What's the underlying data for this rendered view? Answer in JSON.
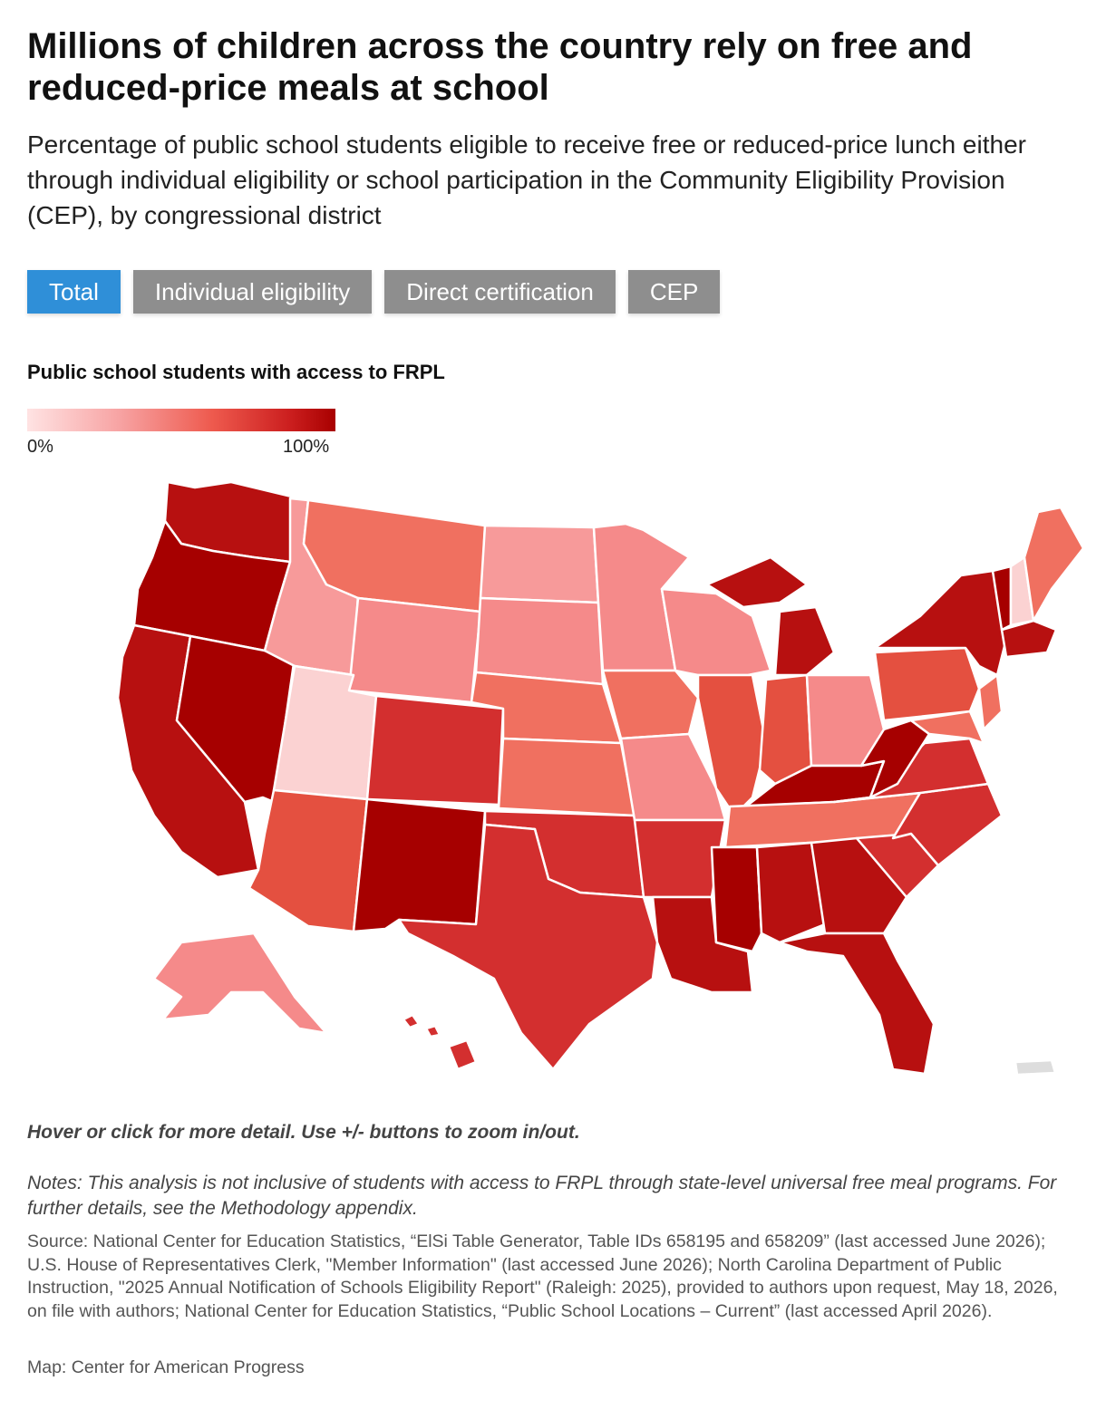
{
  "header": {
    "title": "Millions of children across the country rely on free and reduced-price meals at school",
    "subtitle": "Percentage of public school students eligible to receive free or reduced-price lunch either through individual eligibility or school participation in the Community Eligibility Provision (CEP), by congressional district"
  },
  "tabs": [
    {
      "label": "Total",
      "active": true
    },
    {
      "label": "Individual eligibility",
      "active": false
    },
    {
      "label": "Direct certification",
      "active": false
    },
    {
      "label": "CEP",
      "active": false
    }
  ],
  "legend": {
    "title": "Public school students with access to FRPL",
    "min_label": "0%",
    "max_label": "100%",
    "colors": [
      "#ffe3e3",
      "#f7a3a3",
      "#ee5a4e",
      "#cc1f1f",
      "#a80000"
    ]
  },
  "map": {
    "colors": {
      "lightest": "#fbd2d2",
      "light": "#f79a9a",
      "pink": "#f58a8a",
      "salmon": "#f07060",
      "mid": "#e45040",
      "red": "#d32f2f",
      "dark": "#b71010",
      "darkest": "#a60000",
      "territory": "#dddddd",
      "border": "#ffffff"
    }
  },
  "footer": {
    "hint": "Hover or click for more detail. Use +/- buttons to zoom in/out.",
    "notes": "Notes: This analysis is not inclusive of students with access to FRPL through state-level universal free meal programs. For further details, see the Methodology appendix.",
    "source": "Source: National Center for Education Statistics, “ElSi Table Generator, Table IDs 658195 and 658209” (last accessed June 2026); U.S. House of Representatives Clerk, \"Member Information\" (last accessed June 2026); North Carolina Department of Public Instruction, \"2025 Annual Notification of Schools Eligibility Report\" (Raleigh: 2025), provided to authors upon request, May 18, 2026, on file with authors; National Center for Education Statistics, “Public School Locations – Current” (last accessed April 2026).",
    "credit": "Map: Center for American Progress"
  }
}
